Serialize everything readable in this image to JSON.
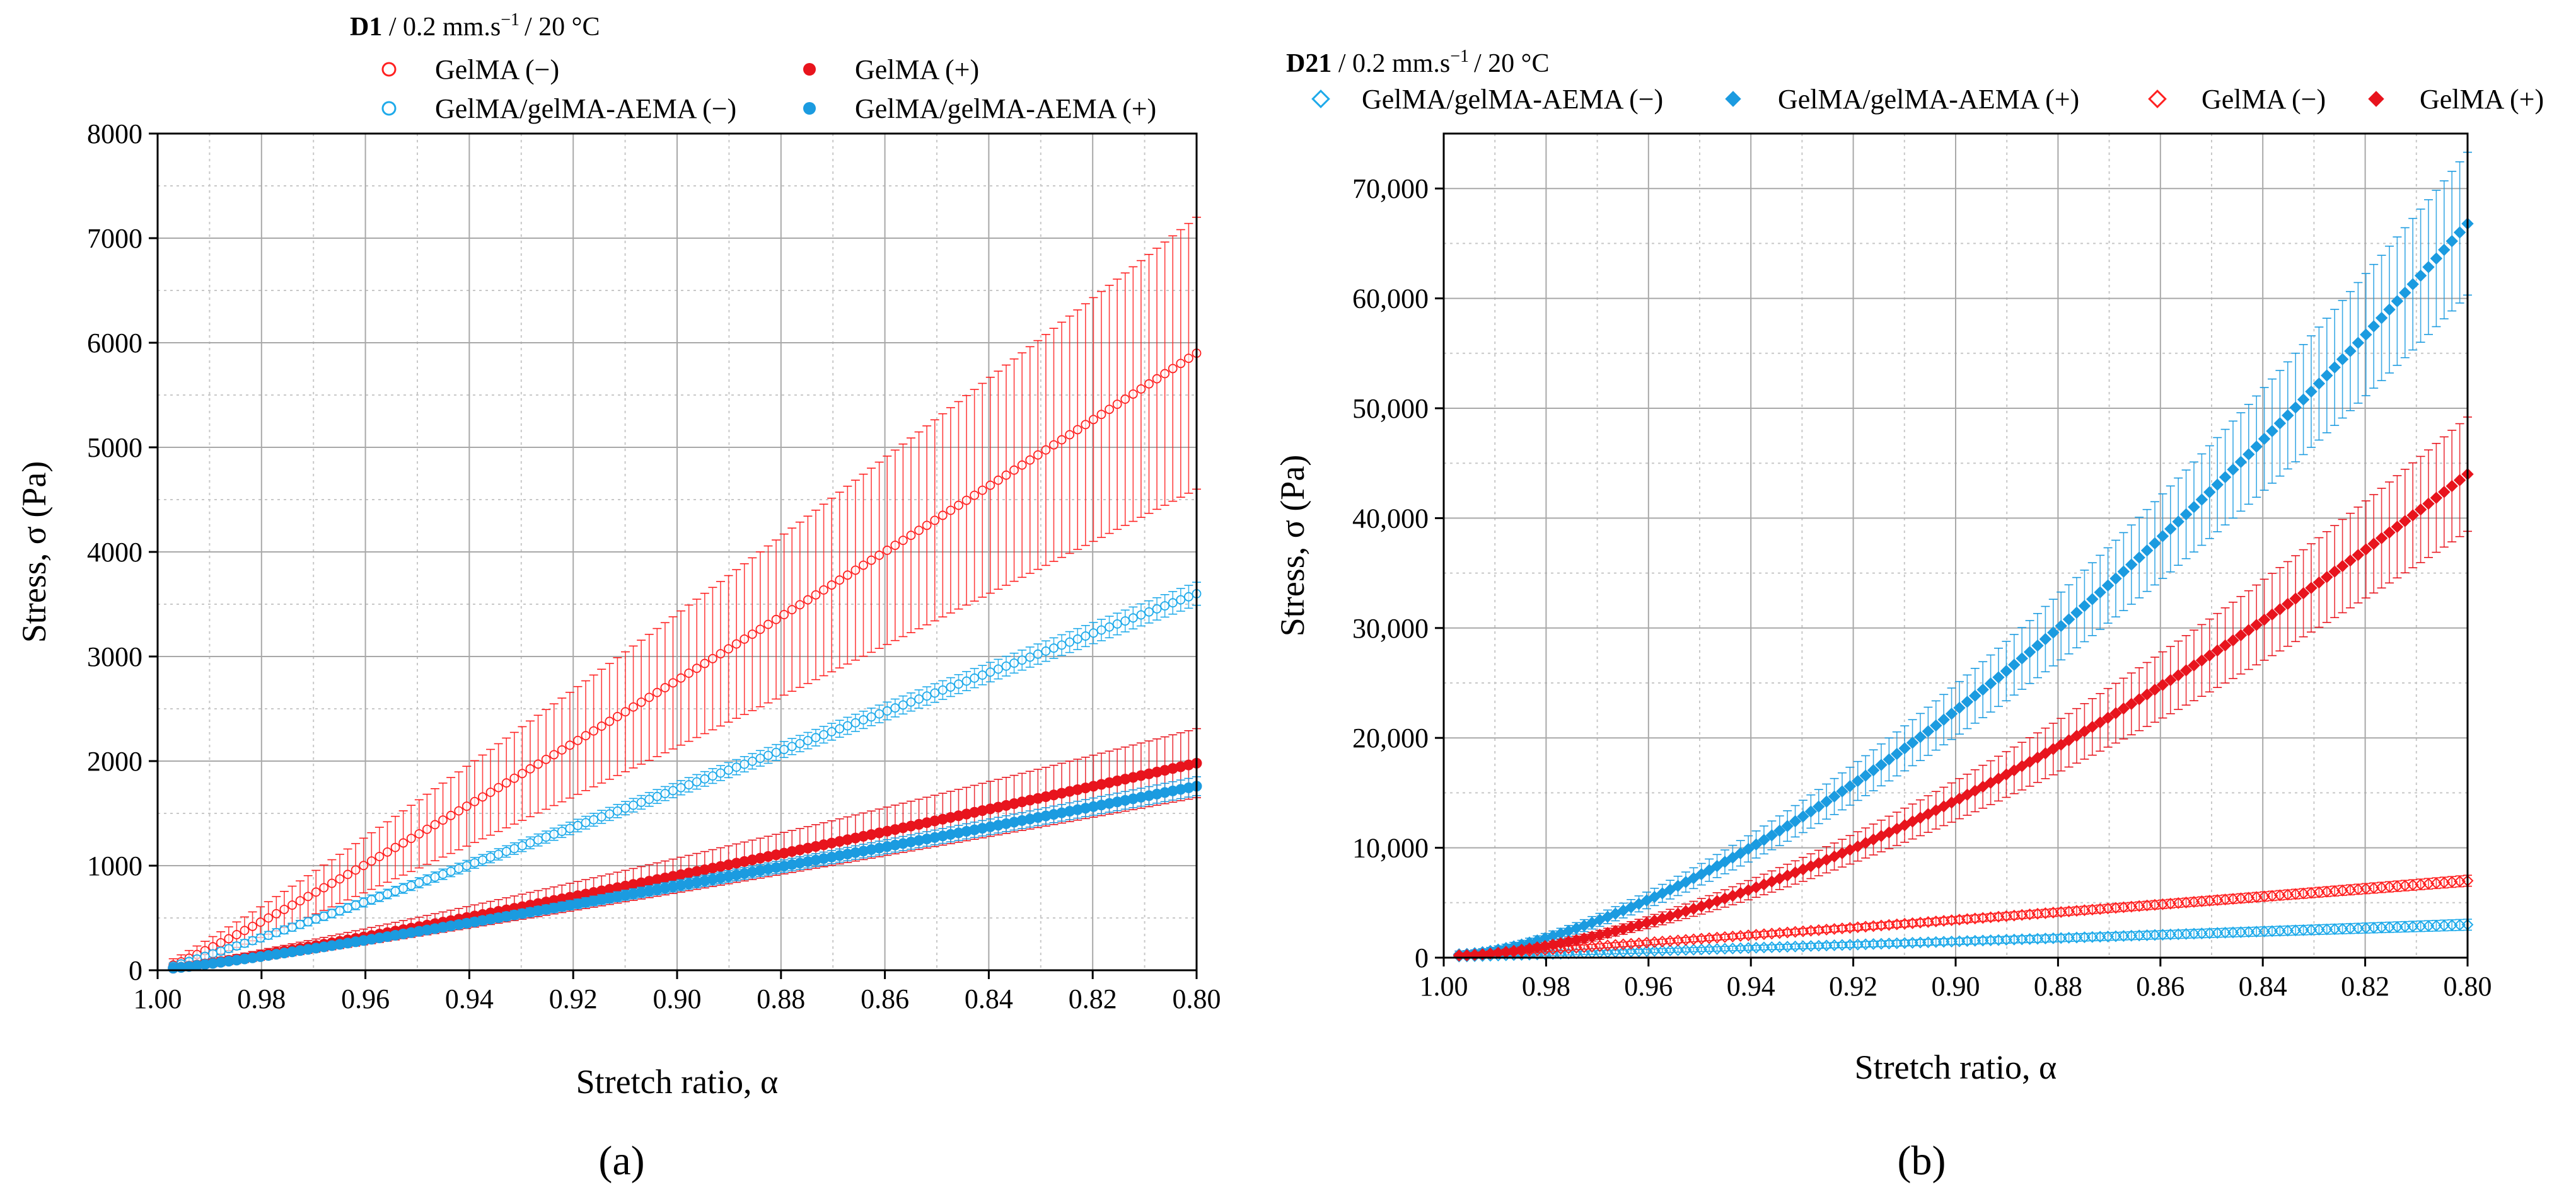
{
  "figure": {
    "panel_a_label": "(a)",
    "panel_b_label": "(b)"
  },
  "chart_data": [
    {
      "type": "scatter",
      "panel": "a",
      "condition_bold": "D1",
      "condition_rest_pre": " / 0.2 mm.s",
      "condition_sup": "−1",
      "condition_rest_post": "/ 20 °C",
      "xlabel": "Stretch ratio, α",
      "ylabel": "Stress, σ (Pa)",
      "xlim": [
        1.0,
        0.8
      ],
      "ylim": [
        0,
        8000
      ],
      "x_ticks": [
        1.0,
        0.98,
        0.96,
        0.94,
        0.92,
        0.9,
        0.88,
        0.86,
        0.84,
        0.82,
        0.8
      ],
      "x_tick_labels": [
        "1.00",
        "0.98",
        "0.96",
        "0.94",
        "0.92",
        "0.90",
        "0.88",
        "0.86",
        "0.84",
        "0.82",
        "0.80"
      ],
      "y_ticks": [
        0,
        1000,
        2000,
        3000,
        4000,
        5000,
        6000,
        7000,
        8000
      ],
      "y_tick_labels": [
        "0",
        "1000",
        "2000",
        "3000",
        "4000",
        "5000",
        "6000",
        "7000",
        "8000"
      ],
      "grid": true,
      "legend_placement": "top, above plot",
      "series": [
        {
          "name": "GelMA (−)",
          "marker": "open-circle",
          "color": "#ff2020",
          "x": [
            0.997,
            0.8
          ],
          "y": [
            50,
            5900
          ],
          "exponent": 1.08,
          "err_start": 60,
          "err_end": 1300
        },
        {
          "name": "GelMA (+)",
          "marker": "filled-circle",
          "color": "#e8141d",
          "x": [
            0.997,
            0.8
          ],
          "y": [
            20,
            1980
          ],
          "exponent": 1.12,
          "err_start": 30,
          "err_end": 330
        },
        {
          "name": "GelMA/gelMA-AEMA (−)",
          "marker": "open-circle",
          "color": "#1eaaea",
          "x": [
            0.997,
            0.8
          ],
          "y": [
            40,
            3600
          ],
          "exponent": 1.05,
          "err_start": 30,
          "err_end": 110
        },
        {
          "name": "GelMA/gelMA-AEMA (+)",
          "marker": "filled-circle",
          "color": "#1b9be0",
          "x": [
            0.997,
            0.8
          ],
          "y": [
            20,
            1760
          ],
          "exponent": 1.12,
          "err_start": 20,
          "err_end": 90
        }
      ]
    },
    {
      "type": "scatter",
      "panel": "b",
      "condition_bold": "D21",
      "condition_rest_pre": " / 0.2 mm.s",
      "condition_sup": "−1",
      "condition_rest_post": "/ 20 °C",
      "xlabel": "Stretch ratio, α",
      "ylabel": "Stress, σ (Pa)",
      "xlim": [
        1.0,
        0.8
      ],
      "ylim": [
        0,
        75000
      ],
      "x_ticks": [
        1.0,
        0.98,
        0.96,
        0.94,
        0.92,
        0.9,
        0.88,
        0.86,
        0.84,
        0.82,
        0.8
      ],
      "x_tick_labels": [
        "1.00",
        "0.98",
        "0.96",
        "0.94",
        "0.92",
        "0.90",
        "0.88",
        "0.86",
        "0.84",
        "0.82",
        "0.80"
      ],
      "y_ticks": [
        0,
        10000,
        20000,
        30000,
        40000,
        50000,
        60000,
        70000
      ],
      "y_tick_labels": [
        "0",
        "10,000",
        "20,000",
        "30,000",
        "40,000",
        "50,000",
        "60,000",
        "70,000"
      ],
      "grid": true,
      "legend_placement": "top, above plot",
      "series": [
        {
          "name": "GelMA/gelMA-AEMA (−)",
          "marker": "open-diamond",
          "color": "#1eaaea",
          "x": [
            0.997,
            0.8
          ],
          "y": [
            100,
            3000
          ],
          "exponent": 1.05,
          "err_start": 100,
          "err_end": 500
        },
        {
          "name": "GelMA/gelMA-AEMA (+)",
          "marker": "filled-diamond",
          "color": "#1b9be0",
          "x": [
            0.997,
            0.8
          ],
          "y": [
            300,
            66800
          ],
          "exponent": 1.55,
          "err_start": 300,
          "err_end": 6500
        },
        {
          "name": "GelMA (−)",
          "marker": "open-diamond",
          "color": "#ff2020",
          "x": [
            0.997,
            0.8
          ],
          "y": [
            200,
            7000
          ],
          "exponent": 1.05,
          "err_start": 150,
          "err_end": 500
        },
        {
          "name": "GelMA (+)",
          "marker": "filled-diamond",
          "color": "#e8141d",
          "x": [
            0.997,
            0.8
          ],
          "y": [
            200,
            44000
          ],
          "exponent": 1.6,
          "err_start": 200,
          "err_end": 5200
        }
      ]
    }
  ]
}
